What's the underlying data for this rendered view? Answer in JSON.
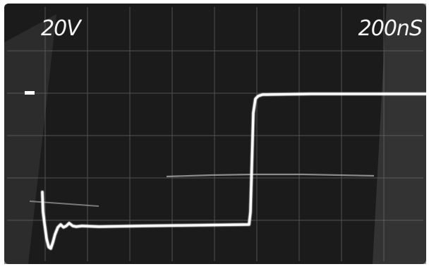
{
  "scope": {
    "volts_per_div": "20V",
    "time_per_div": "200nS",
    "colors": {
      "background": "#1b1b1b",
      "graticule": "#7d7d7d",
      "trace": "#ffffff",
      "label": "#f4f4f4"
    }
  }
}
